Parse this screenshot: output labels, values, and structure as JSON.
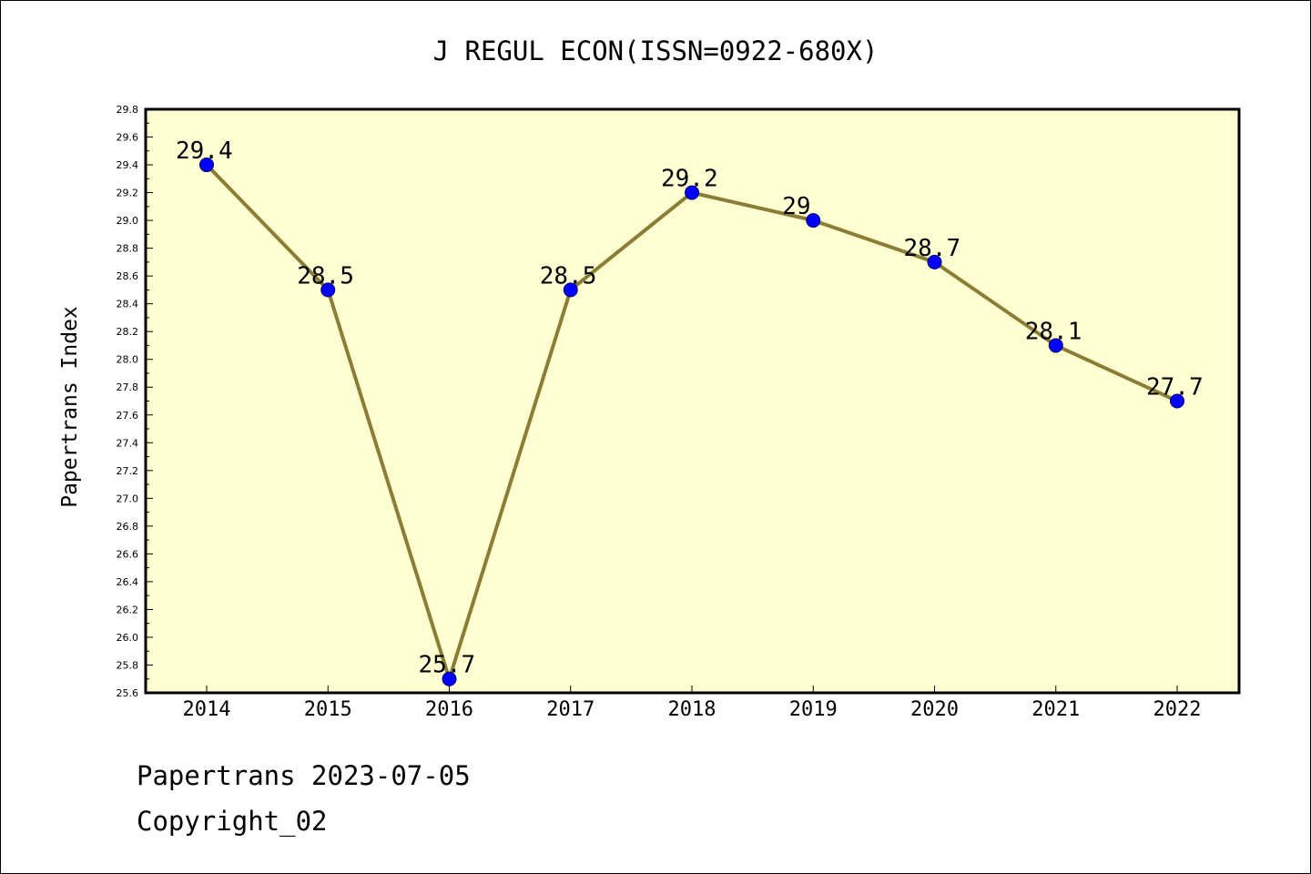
{
  "chart_data": {
    "type": "line",
    "title": "J REGUL ECON(ISSN=0922-680X)",
    "xlabel": "",
    "ylabel": "Papertrans Index",
    "categories": [
      "2014",
      "2015",
      "2016",
      "2017",
      "2018",
      "2019",
      "2020",
      "2021",
      "2022"
    ],
    "series": [
      {
        "values": [
          29.4,
          28.5,
          25.7,
          28.5,
          29.2,
          29.0,
          28.7,
          28.1,
          27.7
        ],
        "labels": [
          "29.4",
          "28.5",
          "25.7",
          "28.5",
          "29.2",
          "29",
          "28.7",
          "28.1",
          "27.7"
        ]
      }
    ],
    "ylim": [
      25.6,
      29.8
    ],
    "yticks": [
      "25.6",
      "25.8",
      "26.0",
      "26.2",
      "26.4",
      "26.6",
      "26.8",
      "27.0",
      "27.2",
      "27.4",
      "27.6",
      "27.8",
      "28.0",
      "28.2",
      "28.4",
      "28.6",
      "28.8",
      "29.0",
      "29.2",
      "29.4",
      "29.6",
      "29.8"
    ],
    "grid": false,
    "colors": {
      "plot_background": "#ffffd2",
      "line": "#8b7d35",
      "marker": "#0000ff"
    }
  },
  "footer": {
    "date_line": "Papertrans 2023-07-05",
    "copyright": "Copyright_02"
  }
}
